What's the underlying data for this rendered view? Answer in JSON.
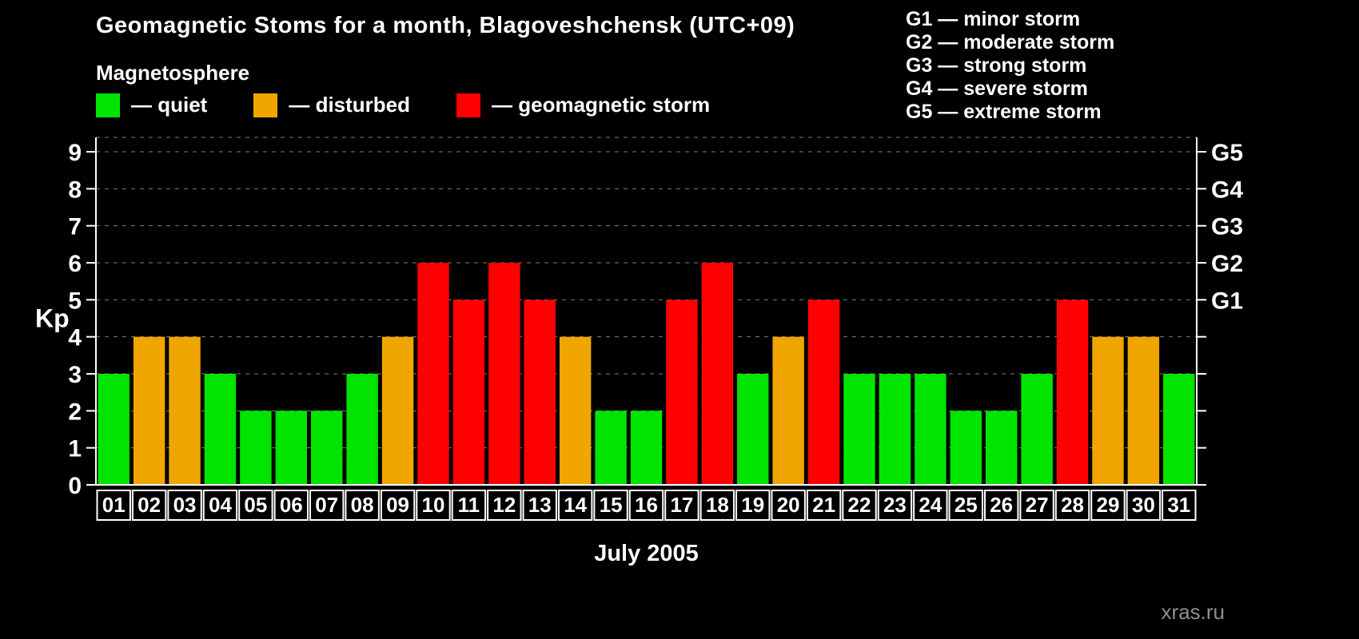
{
  "title": "Geomagnetic Stoms for a month, Blagoveshchensk (UTC+09)",
  "legend": {
    "heading": "Magnetosphere",
    "items": [
      {
        "key": "quiet",
        "label": "— quiet"
      },
      {
        "key": "disturbed",
        "label": "— disturbed"
      },
      {
        "key": "storm",
        "label": "— geomagnetic storm"
      }
    ]
  },
  "g_scale": [
    {
      "code": "G1",
      "label": "G1 — minor storm",
      "kp": 5
    },
    {
      "code": "G2",
      "label": "G2 — moderate storm",
      "kp": 6
    },
    {
      "code": "G3",
      "label": "G3 — strong storm",
      "kp": 7
    },
    {
      "code": "G4",
      "label": "G4 — severe storm",
      "kp": 8
    },
    {
      "code": "G5",
      "label": "G5 — extreme storm",
      "kp": 9
    }
  ],
  "watermark": "xras.ru",
  "chart_data": {
    "type": "bar",
    "title": "Geomagnetic Stoms for a month, Blagoveshchensk (UTC+09)",
    "xlabel": "July 2005",
    "ylabel": "Kp",
    "ylim": [
      0,
      9
    ],
    "yticks": [
      0,
      1,
      2,
      3,
      4,
      5,
      6,
      7,
      8,
      9
    ],
    "grid": "dashed horizontal",
    "legend_position": "top-left",
    "categories": [
      "01",
      "02",
      "03",
      "04",
      "05",
      "06",
      "07",
      "08",
      "09",
      "10",
      "11",
      "12",
      "13",
      "14",
      "15",
      "16",
      "17",
      "18",
      "19",
      "20",
      "21",
      "22",
      "23",
      "24",
      "25",
      "26",
      "27",
      "28",
      "29",
      "30",
      "31"
    ],
    "values": [
      3,
      4,
      4,
      3,
      2,
      2,
      2,
      3,
      4,
      6,
      5,
      6,
      5,
      4,
      2,
      2,
      5,
      6,
      3,
      4,
      5,
      3,
      3,
      3,
      2,
      2,
      3,
      5,
      4,
      4,
      3
    ],
    "statuses": [
      "quiet",
      "disturbed",
      "disturbed",
      "quiet",
      "quiet",
      "quiet",
      "quiet",
      "quiet",
      "disturbed",
      "storm",
      "storm",
      "storm",
      "storm",
      "disturbed",
      "quiet",
      "quiet",
      "storm",
      "storm",
      "quiet",
      "disturbed",
      "storm",
      "quiet",
      "quiet",
      "quiet",
      "quiet",
      "quiet",
      "quiet",
      "storm",
      "disturbed",
      "disturbed",
      "quiet"
    ],
    "colors": {
      "quiet": "#00e400",
      "disturbed": "#f0a500",
      "storm": "#ff0000",
      "axis": "#ffffff",
      "grid": "#7f7f7f",
      "background": "#000000"
    }
  }
}
